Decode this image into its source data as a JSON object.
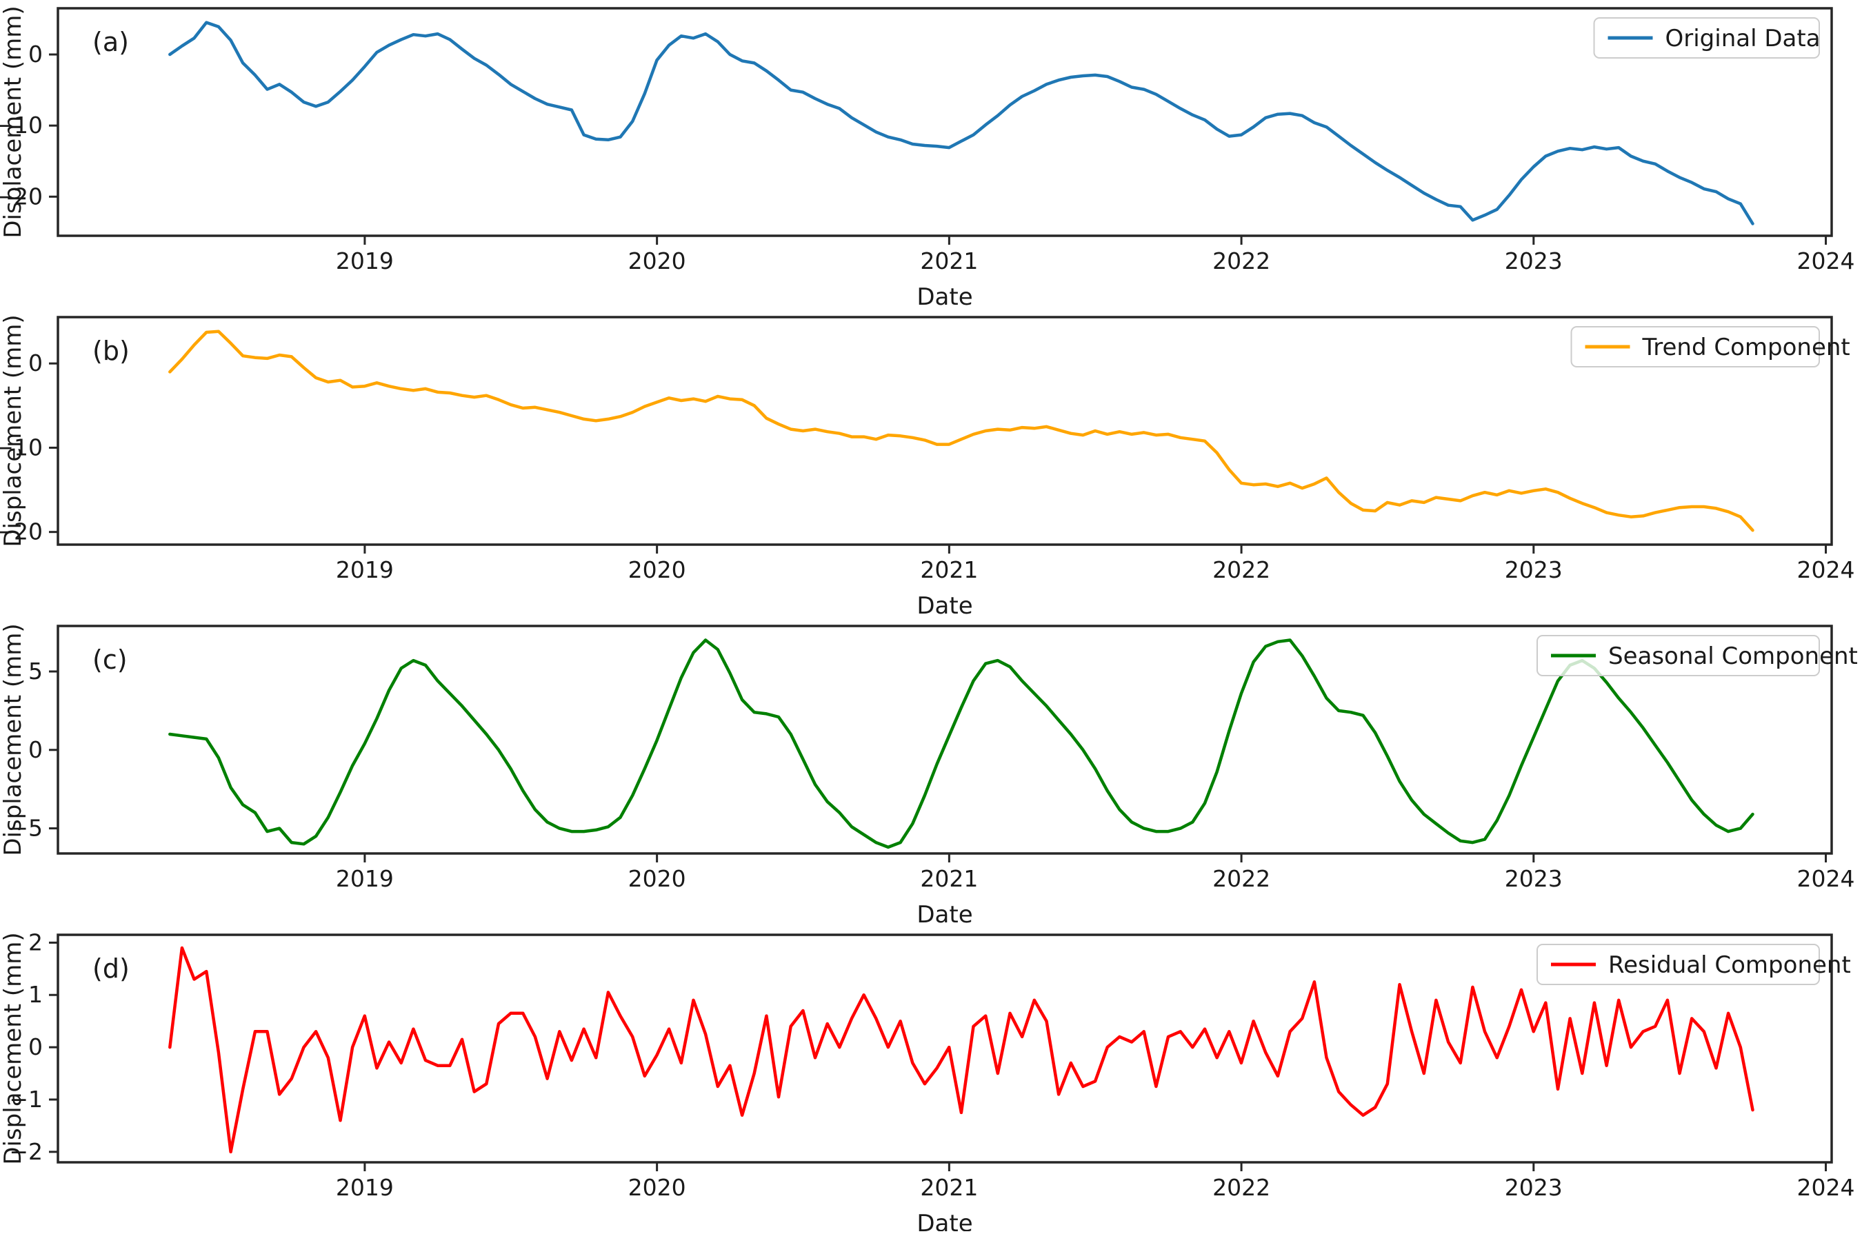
{
  "figure": {
    "xlabel": "Date",
    "ylabel": "Displacement (mm)",
    "x_tick_labels": [
      "2019",
      "2020",
      "2021",
      "2022",
      "2023",
      "2024"
    ],
    "background": "#ffffff",
    "spine_color": "#262626",
    "text_color": "#1a1a1a",
    "legend_border": "#cccccc",
    "legend_bg_alpha": 0.8
  },
  "chart_data": [
    {
      "type": "line",
      "panel": "a",
      "tag": "(a)",
      "legend": "Original Data",
      "color": "#1f77b4",
      "xlabel": "Date",
      "ylabel": "Displacement (mm)",
      "legend_position": "upper right",
      "grid": false,
      "x_start": 2018.333,
      "x_step": 0.0416667,
      "xlim": [
        2017.95,
        2024.02
      ],
      "ylim": [
        -25.5,
        6.5
      ],
      "xticks": [
        2019,
        2020,
        2021,
        2022,
        2023,
        2024
      ],
      "yticks": [
        0,
        -10,
        -20
      ],
      "values": [
        0.0,
        1.2,
        2.3,
        4.5,
        3.9,
        2.0,
        -1.2,
        -2.9,
        -4.9,
        -4.2,
        -5.3,
        -6.7,
        -7.3,
        -6.7,
        -5.2,
        -3.6,
        -1.7,
        0.3,
        1.3,
        2.1,
        2.8,
        2.6,
        2.9,
        2.1,
        0.75,
        -0.55,
        -1.5,
        -2.8,
        -4.2,
        -5.2,
        -6.2,
        -7.0,
        -7.4,
        -7.8,
        -11.3,
        -11.9,
        -12.0,
        -11.6,
        -9.4,
        -5.5,
        -0.8,
        1.3,
        2.6,
        2.3,
        2.9,
        1.8,
        0.0,
        -0.9,
        -1.2,
        -2.3,
        -3.6,
        -5.0,
        -5.3,
        -6.2,
        -7.0,
        -7.6,
        -8.9,
        -9.9,
        -10.9,
        -11.6,
        -12.0,
        -12.6,
        -12.8,
        -12.9,
        -13.1,
        -12.2,
        -11.3,
        -9.9,
        -8.6,
        -7.1,
        -5.9,
        -5.1,
        -4.2,
        -3.6,
        -3.2,
        -3.0,
        -2.9,
        -3.1,
        -3.8,
        -4.6,
        -4.9,
        -5.6,
        -6.6,
        -7.6,
        -8.5,
        -9.2,
        -10.5,
        -11.5,
        -11.3,
        -10.2,
        -8.9,
        -8.4,
        -8.3,
        -8.6,
        -9.6,
        -10.2,
        -11.5,
        -12.8,
        -14.0,
        -15.2,
        -16.3,
        -17.3,
        -18.4,
        -19.5,
        -20.4,
        -21.2,
        -21.4,
        -23.3,
        -22.6,
        -21.8,
        -19.8,
        -17.6,
        -15.8,
        -14.3,
        -13.6,
        -13.2,
        -13.4,
        -13.0,
        -13.3,
        -13.1,
        -14.3,
        -15.0,
        -15.4,
        -16.4,
        -17.3,
        -18.0,
        -18.9,
        -19.3,
        -20.3,
        -21.0,
        -23.8
      ]
    },
    {
      "type": "line",
      "panel": "b",
      "tag": "(b)",
      "legend": "Trend Component",
      "color": "#ffa500",
      "xlabel": "Date",
      "ylabel": "Displacement (mm)",
      "legend_position": "upper right",
      "grid": false,
      "x_start": 2018.333,
      "x_step": 0.0416667,
      "xlim": [
        2017.95,
        2024.02
      ],
      "ylim": [
        -21.5,
        5.5
      ],
      "xticks": [
        2019,
        2020,
        2021,
        2022,
        2023,
        2024
      ],
      "yticks": [
        0,
        -10,
        -20
      ],
      "values": [
        -1.0,
        0.5,
        2.2,
        3.7,
        3.8,
        2.4,
        0.9,
        0.7,
        0.6,
        1.0,
        0.8,
        -0.5,
        -1.7,
        -2.2,
        -2.0,
        -2.8,
        -2.7,
        -2.3,
        -2.7,
        -3.0,
        -3.2,
        -3.0,
        -3.4,
        -3.5,
        -3.8,
        -4.0,
        -3.8,
        -4.3,
        -4.9,
        -5.3,
        -5.2,
        -5.5,
        -5.8,
        -6.2,
        -6.6,
        -6.8,
        -6.6,
        -6.3,
        -5.8,
        -5.1,
        -4.6,
        -4.1,
        -4.4,
        -4.2,
        -4.5,
        -3.9,
        -4.2,
        -4.3,
        -5.0,
        -6.5,
        -7.2,
        -7.8,
        -8.0,
        -7.8,
        -8.1,
        -8.3,
        -8.7,
        -8.7,
        -9.0,
        -8.5,
        -8.6,
        -8.8,
        -9.1,
        -9.6,
        -9.6,
        -9.0,
        -8.4,
        -8.0,
        -7.8,
        -7.9,
        -7.6,
        -7.7,
        -7.5,
        -7.9,
        -8.3,
        -8.5,
        -8.0,
        -8.4,
        -8.1,
        -8.4,
        -8.2,
        -8.5,
        -8.4,
        -8.8,
        -9.0,
        -9.2,
        -10.6,
        -12.6,
        -14.2,
        -14.4,
        -14.3,
        -14.6,
        -14.2,
        -14.8,
        -14.3,
        -13.6,
        -15.3,
        -16.6,
        -17.4,
        -17.5,
        -16.5,
        -16.8,
        -16.3,
        -16.5,
        -15.9,
        -16.1,
        -16.3,
        -15.7,
        -15.3,
        -15.6,
        -15.1,
        -15.4,
        -15.1,
        -14.9,
        -15.3,
        -16.0,
        -16.6,
        -17.1,
        -17.7,
        -18.0,
        -18.2,
        -18.1,
        -17.7,
        -17.4,
        -17.1,
        -17.0,
        -17.0,
        -17.2,
        -17.6,
        -18.2,
        -19.8
      ]
    },
    {
      "type": "line",
      "panel": "c",
      "tag": "(c)",
      "legend": "Seasonal Component",
      "color": "#008000",
      "xlabel": "Date",
      "ylabel": "Displacement (mm)",
      "legend_position": "upper right",
      "grid": false,
      "x_start": 2018.333,
      "x_step": 0.0416667,
      "xlim": [
        2017.95,
        2024.02
      ],
      "ylim": [
        -6.6,
        7.9
      ],
      "xticks": [
        2019,
        2020,
        2021,
        2022,
        2023,
        2024
      ],
      "yticks": [
        5,
        0,
        -5
      ],
      "values": [
        1.0,
        0.9,
        0.8,
        0.7,
        -0.5,
        -2.4,
        -3.5,
        -4.0,
        -5.2,
        -5.0,
        -5.9,
        -6.0,
        -5.5,
        -4.3,
        -2.7,
        -1.0,
        0.4,
        2.0,
        3.8,
        5.2,
        5.7,
        5.4,
        4.4,
        3.6,
        2.8,
        1.9,
        1.0,
        0.0,
        -1.2,
        -2.6,
        -3.8,
        -4.6,
        -5.0,
        -5.2,
        -5.2,
        -5.1,
        -4.9,
        -4.3,
        -2.9,
        -1.2,
        0.6,
        2.6,
        4.6,
        6.2,
        7.0,
        6.4,
        4.9,
        3.2,
        2.4,
        2.3,
        2.1,
        1.0,
        -0.6,
        -2.2,
        -3.3,
        -4.0,
        -4.9,
        -5.4,
        -5.9,
        -6.2,
        -5.9,
        -4.7,
        -2.9,
        -0.9,
        0.9,
        2.7,
        4.4,
        5.5,
        5.7,
        5.3,
        4.4,
        3.6,
        2.8,
        1.9,
        1.0,
        0.0,
        -1.2,
        -2.6,
        -3.8,
        -4.6,
        -5.0,
        -5.2,
        -5.2,
        -5.0,
        -4.6,
        -3.4,
        -1.4,
        1.2,
        3.6,
        5.6,
        6.6,
        6.9,
        7.0,
        6.0,
        4.7,
        3.3,
        2.5,
        2.4,
        2.2,
        1.1,
        -0.4,
        -2.0,
        -3.2,
        -4.1,
        -4.7,
        -5.3,
        -5.8,
        -5.9,
        -5.7,
        -4.5,
        -2.9,
        -1.0,
        0.8,
        2.6,
        4.4,
        5.4,
        5.7,
        5.2,
        4.3,
        3.3,
        2.4,
        1.4,
        0.3,
        -0.8,
        -2.0,
        -3.2,
        -4.1,
        -4.8,
        -5.2,
        -5.0,
        -4.1
      ]
    },
    {
      "type": "line",
      "panel": "d",
      "tag": "(d)",
      "legend": "Residual Component",
      "color": "#ff0000",
      "xlabel": "Date",
      "ylabel": "Displacement (mm)",
      "legend_position": "upper right",
      "grid": false,
      "x_start": 2018.333,
      "x_step": 0.0416667,
      "xlim": [
        2017.95,
        2024.02
      ],
      "ylim": [
        -2.2,
        2.15
      ],
      "xticks": [
        2019,
        2020,
        2021,
        2022,
        2023,
        2024
      ],
      "yticks": [
        2,
        1,
        0,
        -1,
        -2
      ],
      "values": [
        0.0,
        1.9,
        1.3,
        1.45,
        -0.1,
        -2.0,
        -0.8,
        0.3,
        0.3,
        -0.9,
        -0.6,
        0.0,
        0.3,
        -0.2,
        -1.4,
        0.0,
        0.6,
        -0.4,
        0.1,
        -0.3,
        0.35,
        -0.25,
        -0.35,
        -0.35,
        0.15,
        -0.85,
        -0.7,
        0.45,
        0.65,
        0.65,
        0.2,
        -0.6,
        0.3,
        -0.25,
        0.35,
        -0.2,
        1.05,
        0.6,
        0.2,
        -0.55,
        -0.15,
        0.35,
        -0.3,
        0.9,
        0.25,
        -0.75,
        -0.35,
        -1.3,
        -0.5,
        0.6,
        -0.95,
        0.4,
        0.7,
        -0.2,
        0.45,
        0.0,
        0.55,
        1.0,
        0.55,
        0.0,
        0.5,
        -0.3,
        -0.7,
        -0.4,
        0.0,
        -1.25,
        0.4,
        0.6,
        -0.5,
        0.65,
        0.2,
        0.9,
        0.5,
        -0.9,
        -0.3,
        -0.75,
        -0.65,
        0.0,
        0.2,
        0.1,
        0.3,
        -0.75,
        0.2,
        0.3,
        0.0,
        0.35,
        -0.2,
        0.3,
        -0.3,
        0.5,
        -0.1,
        -0.55,
        0.3,
        0.55,
        1.25,
        -0.2,
        -0.85,
        -1.1,
        -1.3,
        -1.15,
        -0.7,
        1.2,
        0.3,
        -0.5,
        0.9,
        0.1,
        -0.3,
        1.15,
        0.3,
        -0.2,
        0.4,
        1.1,
        0.3,
        0.85,
        -0.8,
        0.55,
        -0.5,
        0.85,
        -0.35,
        0.9,
        0.0,
        0.3,
        0.4,
        0.9,
        -0.5,
        0.55,
        0.3,
        -0.4,
        0.65,
        0.0,
        -1.2
      ]
    }
  ]
}
